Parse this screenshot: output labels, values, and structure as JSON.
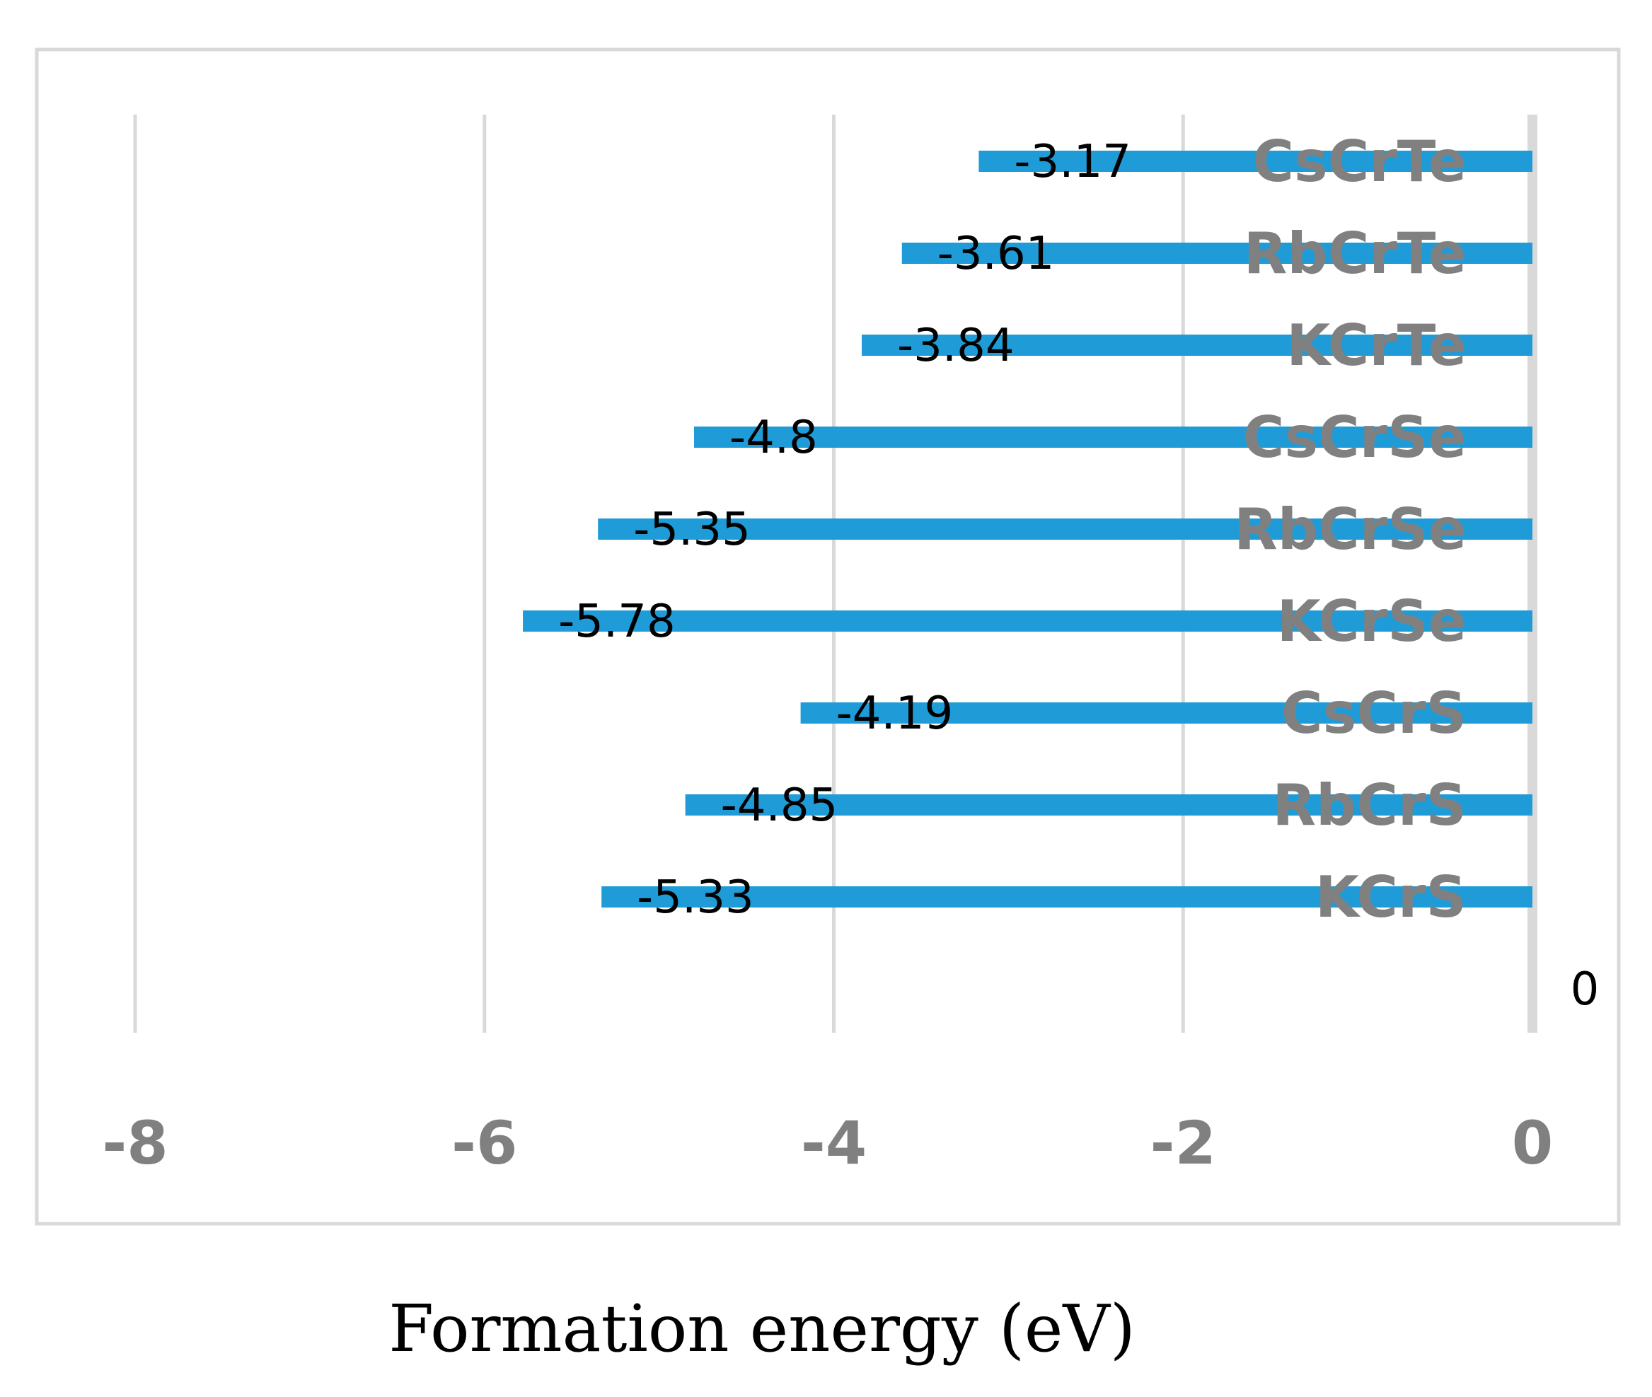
{
  "chart_data": {
    "type": "bar",
    "orientation": "horizontal",
    "categories": [
      "KCrS",
      "RbCrS",
      "CsCrS",
      "KCrSe",
      "RbCrSe",
      "CsCrSe",
      "KCrTe",
      "RbCrTe",
      "CsCrTe"
    ],
    "values": [
      -5.33,
      -4.85,
      -4.19,
      -5.78,
      -5.35,
      -4.8,
      -3.84,
      -3.61,
      -3.17
    ],
    "data_labels": [
      "-5.33",
      "-4.85",
      "-4.19",
      "-5.78",
      "-5.35",
      "-4.8",
      "-3.84",
      "-3.61",
      "-3.17"
    ],
    "xlabel": "Formation energy (eV)",
    "xlim": [
      -8,
      0
    ],
    "x_ticks": [
      -8,
      -6,
      -4,
      -2,
      0
    ],
    "x_tick_labels": [
      "-8",
      "-6",
      "-4",
      "-2",
      "0"
    ],
    "zero_label": "0",
    "grid": true,
    "colors": {
      "bar": "#1F9BD7",
      "grid": "#D9D9D9",
      "frame": "#D9D9D9",
      "tick_text": "#808080",
      "label_text": "#000000"
    }
  }
}
